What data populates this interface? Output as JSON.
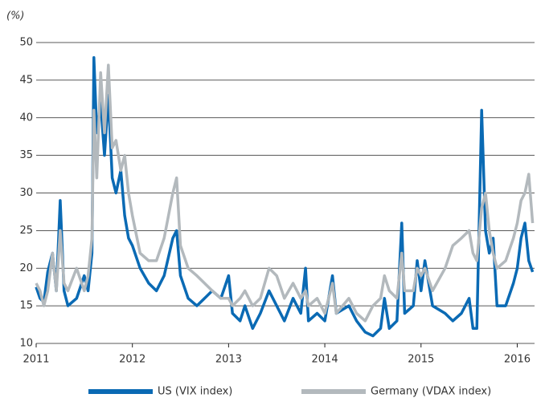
{
  "chart_data": {
    "type": "line",
    "y_label": "(%)",
    "x": [
      2011.0,
      2011.04,
      2011.08,
      2011.12,
      2011.17,
      2011.21,
      2011.25,
      2011.29,
      2011.33,
      2011.42,
      2011.5,
      2011.54,
      2011.58,
      2011.6,
      2011.63,
      2011.67,
      2011.71,
      2011.75,
      2011.79,
      2011.83,
      2011.88,
      2011.92,
      2011.96,
      2012.0,
      2012.08,
      2012.17,
      2012.25,
      2012.33,
      2012.42,
      2012.46,
      2012.5,
      2012.58,
      2012.67,
      2012.75,
      2012.83,
      2012.92,
      2013.0,
      2013.04,
      2013.12,
      2013.17,
      2013.25,
      2013.33,
      2013.42,
      2013.5,
      2013.58,
      2013.67,
      2013.75,
      2013.8,
      2013.83,
      2013.92,
      2014.0,
      2014.08,
      2014.12,
      2014.25,
      2014.33,
      2014.42,
      2014.5,
      2014.58,
      2014.62,
      2014.67,
      2014.75,
      2014.8,
      2014.83,
      2014.92,
      2014.96,
      2015.0,
      2015.04,
      2015.12,
      2015.25,
      2015.33,
      2015.42,
      2015.5,
      2015.54,
      2015.58,
      2015.63,
      2015.67,
      2015.71,
      2015.75,
      2015.79,
      2015.88,
      2015.96,
      2016.0,
      2016.04,
      2016.08,
      2016.12,
      2016.16
    ],
    "series": [
      {
        "name": "US (VIX index)",
        "color": "#0a6ab4",
        "values": [
          17.5,
          16,
          15.5,
          19.5,
          22,
          17,
          29,
          17,
          15,
          16,
          19,
          17,
          22,
          48,
          38,
          42,
          35,
          43,
          32,
          30,
          33,
          27,
          24,
          23,
          20,
          18,
          17,
          19,
          24,
          25,
          19,
          16,
          15,
          16,
          17,
          16,
          19,
          14,
          13,
          15,
          12,
          14,
          17,
          15,
          13,
          16,
          14,
          20,
          13,
          14,
          13,
          19,
          14,
          15,
          13,
          11.5,
          11,
          12,
          16,
          12,
          13,
          26,
          14,
          15,
          21,
          17,
          21,
          15,
          14,
          13,
          14,
          16,
          12,
          12,
          41,
          25,
          22,
          24,
          15,
          15,
          18,
          20,
          24,
          26,
          21,
          19.5
        ]
      },
      {
        "name": "Germany (VDAX index)",
        "color": "#b3b9bd",
        "values": [
          18,
          17,
          15,
          17,
          22,
          17,
          25,
          18,
          17,
          20,
          17,
          19,
          24,
          41,
          32,
          46,
          38,
          47,
          36,
          37,
          33,
          35,
          30,
          27,
          22,
          21,
          21,
          24,
          30,
          32,
          23,
          20,
          19,
          18,
          17,
          16,
          16,
          15,
          16,
          17,
          15,
          16,
          20,
          19,
          16,
          18,
          16,
          17,
          15,
          16,
          14,
          18,
          14,
          16,
          14,
          13,
          15,
          16,
          19,
          17,
          16,
          22,
          17,
          17,
          20,
          19,
          20,
          17,
          20,
          23,
          24,
          25,
          22,
          21,
          28,
          30,
          25,
          22,
          20,
          21,
          24,
          26,
          29,
          30,
          32.5,
          26
        ]
      }
    ],
    "xlim": [
      2011,
      2016.18
    ],
    "xticks": [
      2011,
      2012,
      2013,
      2014,
      2015,
      2016
    ],
    "ylim": [
      10,
      50
    ],
    "yticks": [
      10,
      15,
      20,
      25,
      30,
      35,
      40,
      45,
      50
    ],
    "grid": true
  }
}
